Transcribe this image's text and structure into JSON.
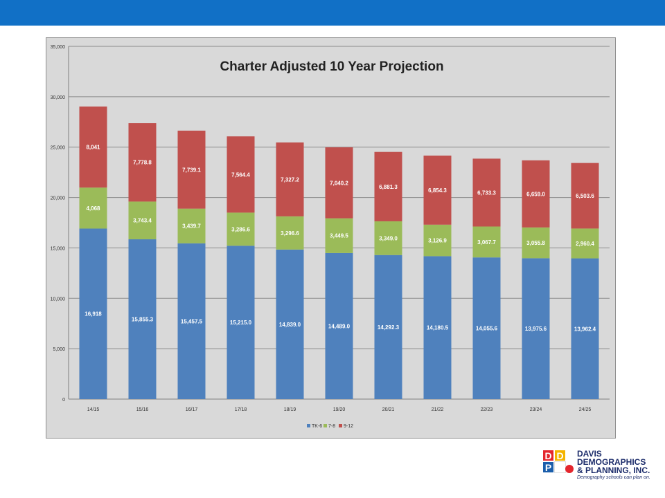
{
  "chart_data": {
    "type": "stacked-bar",
    "title": "Charter Adjusted 10 Year Projection",
    "categories": [
      "14/15",
      "15/16",
      "16/17",
      "17/18",
      "18/19",
      "19/20",
      "20/21",
      "21/22",
      "22/23",
      "23/24",
      "24/25"
    ],
    "series": [
      {
        "name": "TK-6",
        "color": "#4f81bd",
        "values": [
          16918,
          15855.3,
          15457.5,
          15215.0,
          14839.0,
          14489.0,
          14292.3,
          14180.5,
          14055.6,
          13975.6,
          13962.4
        ],
        "labels": [
          "16,918",
          "15,855.3",
          "15,457.5",
          "15,215.0",
          "14,839.0",
          "14,489.0",
          "14,292.3",
          "14,180.5",
          "14,055.6",
          "13,975.6",
          "13,962.4"
        ]
      },
      {
        "name": "7-8",
        "color": "#9bbb59",
        "values": [
          4068,
          3743.4,
          3439.7,
          3286.6,
          3296.6,
          3449.5,
          3349.0,
          3126.9,
          3067.7,
          3055.8,
          2960.4
        ],
        "labels": [
          "4,068",
          "3,743.4",
          "3,439.7",
          "3,286.6",
          "3,296.6",
          "3,449.5",
          "3,349.0",
          "3,126.9",
          "3,067.7",
          "3,055.8",
          "2,960.4"
        ]
      },
      {
        "name": "9-12",
        "color": "#c0504d",
        "values": [
          8041,
          7778.8,
          7739.1,
          7564.4,
          7327.2,
          7040.2,
          6881.3,
          6854.3,
          6733.3,
          6659.0,
          6503.6
        ],
        "labels": [
          "8,041",
          "7,778.8",
          "7,739.1",
          "7,564.4",
          "7,327.2",
          "7,040.2",
          "6,881.3",
          "6,854.3",
          "6,733.3",
          "6,659.0",
          "6,503.6"
        ]
      }
    ],
    "ylim": [
      0,
      35000
    ],
    "yticks": [
      0,
      5000,
      10000,
      15000,
      20000,
      25000,
      30000,
      35000
    ],
    "ytick_labels": [
      "0",
      "5,000",
      "10,000",
      "15,000",
      "20,000",
      "25,000",
      "30,000",
      "35,000"
    ],
    "grid": true,
    "legend_position": "bottom"
  },
  "logo": {
    "tiles": [
      "D",
      "D",
      "P"
    ],
    "line1": "DAVIS",
    "line2": "DEMOGRAPHICS",
    "line3": "& PLANNING, INC.",
    "tagline": "Demography schools can plan on."
  },
  "colors": {
    "top_bar": "#1170c6",
    "plot_background": "#d9d9d9"
  }
}
